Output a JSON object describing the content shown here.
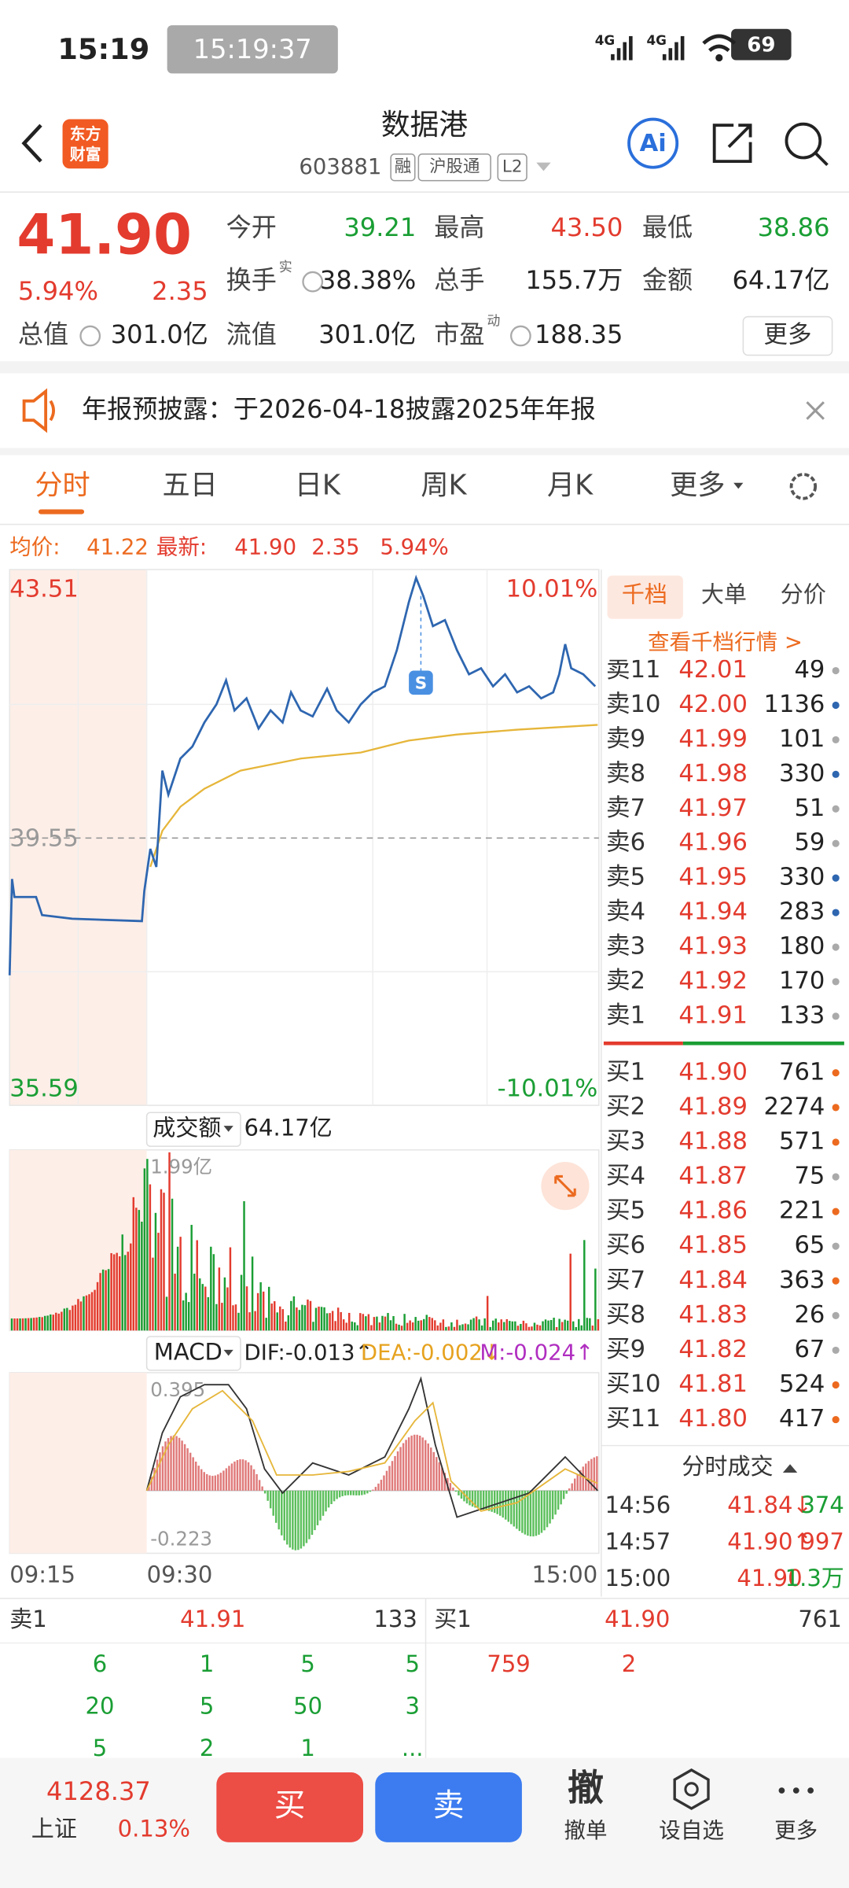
{
  "status": {
    "time": "15:19",
    "clock": "15:19:37",
    "net1": "4G",
    "net2": "4G",
    "battery": "69"
  },
  "header": {
    "logo": [
      "东方",
      "财富"
    ],
    "title": "数据港",
    "code": "603881",
    "tags": [
      "融",
      "沪股通",
      "L2"
    ],
    "ai": "Ai"
  },
  "quote": {
    "price": "41.90",
    "change_pct": "5.94%",
    "change": "2.35",
    "more": "更多",
    "fields": [
      {
        "label": "今开",
        "value": "39.21",
        "color": "#1a9e34"
      },
      {
        "label": "最高",
        "value": "43.50",
        "color": "#e33b2e"
      },
      {
        "label": "最低",
        "value": "38.86",
        "color": "#1a9e34"
      },
      {
        "label": "换手",
        "sup": "实",
        "value": "38.38%",
        "color": "#222222"
      },
      {
        "label": "总手",
        "value": "155.7万",
        "color": "#222222"
      },
      {
        "label": "金额",
        "value": "64.17亿",
        "color": "#222222"
      },
      {
        "label": "总值",
        "value": "301.0亿",
        "color": "#222222"
      },
      {
        "label": "流值",
        "value": "301.0亿",
        "color": "#222222"
      },
      {
        "label": "市盈",
        "sup": "动",
        "value": "188.35",
        "color": "#222222"
      }
    ]
  },
  "notice": {
    "text": "年报预披露：于2026-04-18披露2025年年报"
  },
  "tabs": [
    "分时",
    "五日",
    "日K",
    "周K",
    "月K",
    "更多"
  ],
  "chart": {
    "avg_label": "均价:",
    "avg": "41.22",
    "last_label": "最新:",
    "last": "41.90",
    "change": "2.35",
    "pct": "5.94%",
    "y_top": "43.51",
    "pct_top": "10.01%",
    "y_mid": "39.55",
    "y_bottom": "35.59",
    "pct_bottom": "-10.01%",
    "marker": "S",
    "volume_label": "成交额",
    "volume_total": "64.17亿",
    "volume_max": "1.99亿",
    "macd": "MACD",
    "dif": "DIF:-0.013↑",
    "dea": "DEA:-0.002↓",
    "m": "M:-0.024↑",
    "macd_max": "0.395",
    "macd_min": "-0.223",
    "times": [
      "09:15",
      "09:30",
      "15:00"
    ]
  },
  "book": {
    "tabs": [
      "千档",
      "大单",
      "分价"
    ],
    "link": "查看千档行情 >",
    "asks": [
      {
        "label": "卖11",
        "price": "42.01",
        "volume": "49",
        "dot": "#aaaaaa"
      },
      {
        "label": "卖10",
        "price": "42.00",
        "volume": "1136",
        "dot": "#2e66b0"
      },
      {
        "label": "卖9",
        "price": "41.99",
        "volume": "101",
        "dot": "#aaaaaa"
      },
      {
        "label": "卖8",
        "price": "41.98",
        "volume": "330",
        "dot": "#2e66b0"
      },
      {
        "label": "卖7",
        "price": "41.97",
        "volume": "51",
        "dot": "#aaaaaa"
      },
      {
        "label": "卖6",
        "price": "41.96",
        "volume": "59",
        "dot": "#aaaaaa"
      },
      {
        "label": "卖5",
        "price": "41.95",
        "volume": "330",
        "dot": "#2e66b0"
      },
      {
        "label": "卖4",
        "price": "41.94",
        "volume": "283",
        "dot": "#2e66b0"
      },
      {
        "label": "卖3",
        "price": "41.93",
        "volume": "180",
        "dot": "#aaaaaa"
      },
      {
        "label": "卖2",
        "price": "41.92",
        "volume": "170",
        "dot": "#aaaaaa"
      },
      {
        "label": "卖1",
        "price": "41.91",
        "volume": "133",
        "dot": "#aaaaaa"
      }
    ],
    "bids": [
      {
        "label": "买1",
        "price": "41.90",
        "volume": "761",
        "dot": "#ec6a1f"
      },
      {
        "label": "买2",
        "price": "41.89",
        "volume": "2274",
        "dot": "#ec6a1f"
      },
      {
        "label": "买3",
        "price": "41.88",
        "volume": "571",
        "dot": "#ec6a1f"
      },
      {
        "label": "买4",
        "price": "41.87",
        "volume": "75",
        "dot": "#aaaaaa"
      },
      {
        "label": "买5",
        "price": "41.86",
        "volume": "221",
        "dot": "#ec6a1f"
      },
      {
        "label": "买6",
        "price": "41.85",
        "volume": "65",
        "dot": "#aaaaaa"
      },
      {
        "label": "买7",
        "price": "41.84",
        "volume": "363",
        "dot": "#ec6a1f"
      },
      {
        "label": "买8",
        "price": "41.83",
        "volume": "26",
        "dot": "#aaaaaa"
      },
      {
        "label": "买9",
        "price": "41.82",
        "volume": "67",
        "dot": "#aaaaaa"
      },
      {
        "label": "买10",
        "price": "41.81",
        "volume": "524",
        "dot": "#ec6a1f"
      },
      {
        "label": "买11",
        "price": "41.80",
        "volume": "417",
        "dot": "#ec6a1f"
      }
    ]
  },
  "trades": {
    "title": "分时成交",
    "rows": [
      {
        "time": "14:56",
        "price": "41.84↓",
        "volume": "374",
        "color": "#1a9e34"
      },
      {
        "time": "14:57",
        "price": "41.90↑",
        "volume": "997",
        "color": "#e33b2e"
      },
      {
        "time": "15:00",
        "price": "41.90",
        "volume": "1.3万",
        "color": "#1a9e34"
      }
    ]
  },
  "queue": {
    "ask": {
      "label": "卖1",
      "price": "41.91",
      "volume": "133",
      "orders": [
        [
          "6",
          "1",
          "5",
          "5"
        ],
        [
          "20",
          "5",
          "50",
          "3"
        ],
        [
          "5",
          "2",
          "1",
          "..."
        ]
      ]
    },
    "bid": {
      "label": "买1",
      "price": "41.90",
      "volume": "761",
      "orders": [
        [
          "759",
          "2"
        ]
      ]
    }
  },
  "footer": {
    "index": "4128.37",
    "index_name": "上证",
    "index_pct": "0.13%",
    "buy": "买",
    "sell": "卖",
    "cancel_icon": "撤",
    "cancel": "撤单",
    "watch": "设自选",
    "more": "更多"
  }
}
